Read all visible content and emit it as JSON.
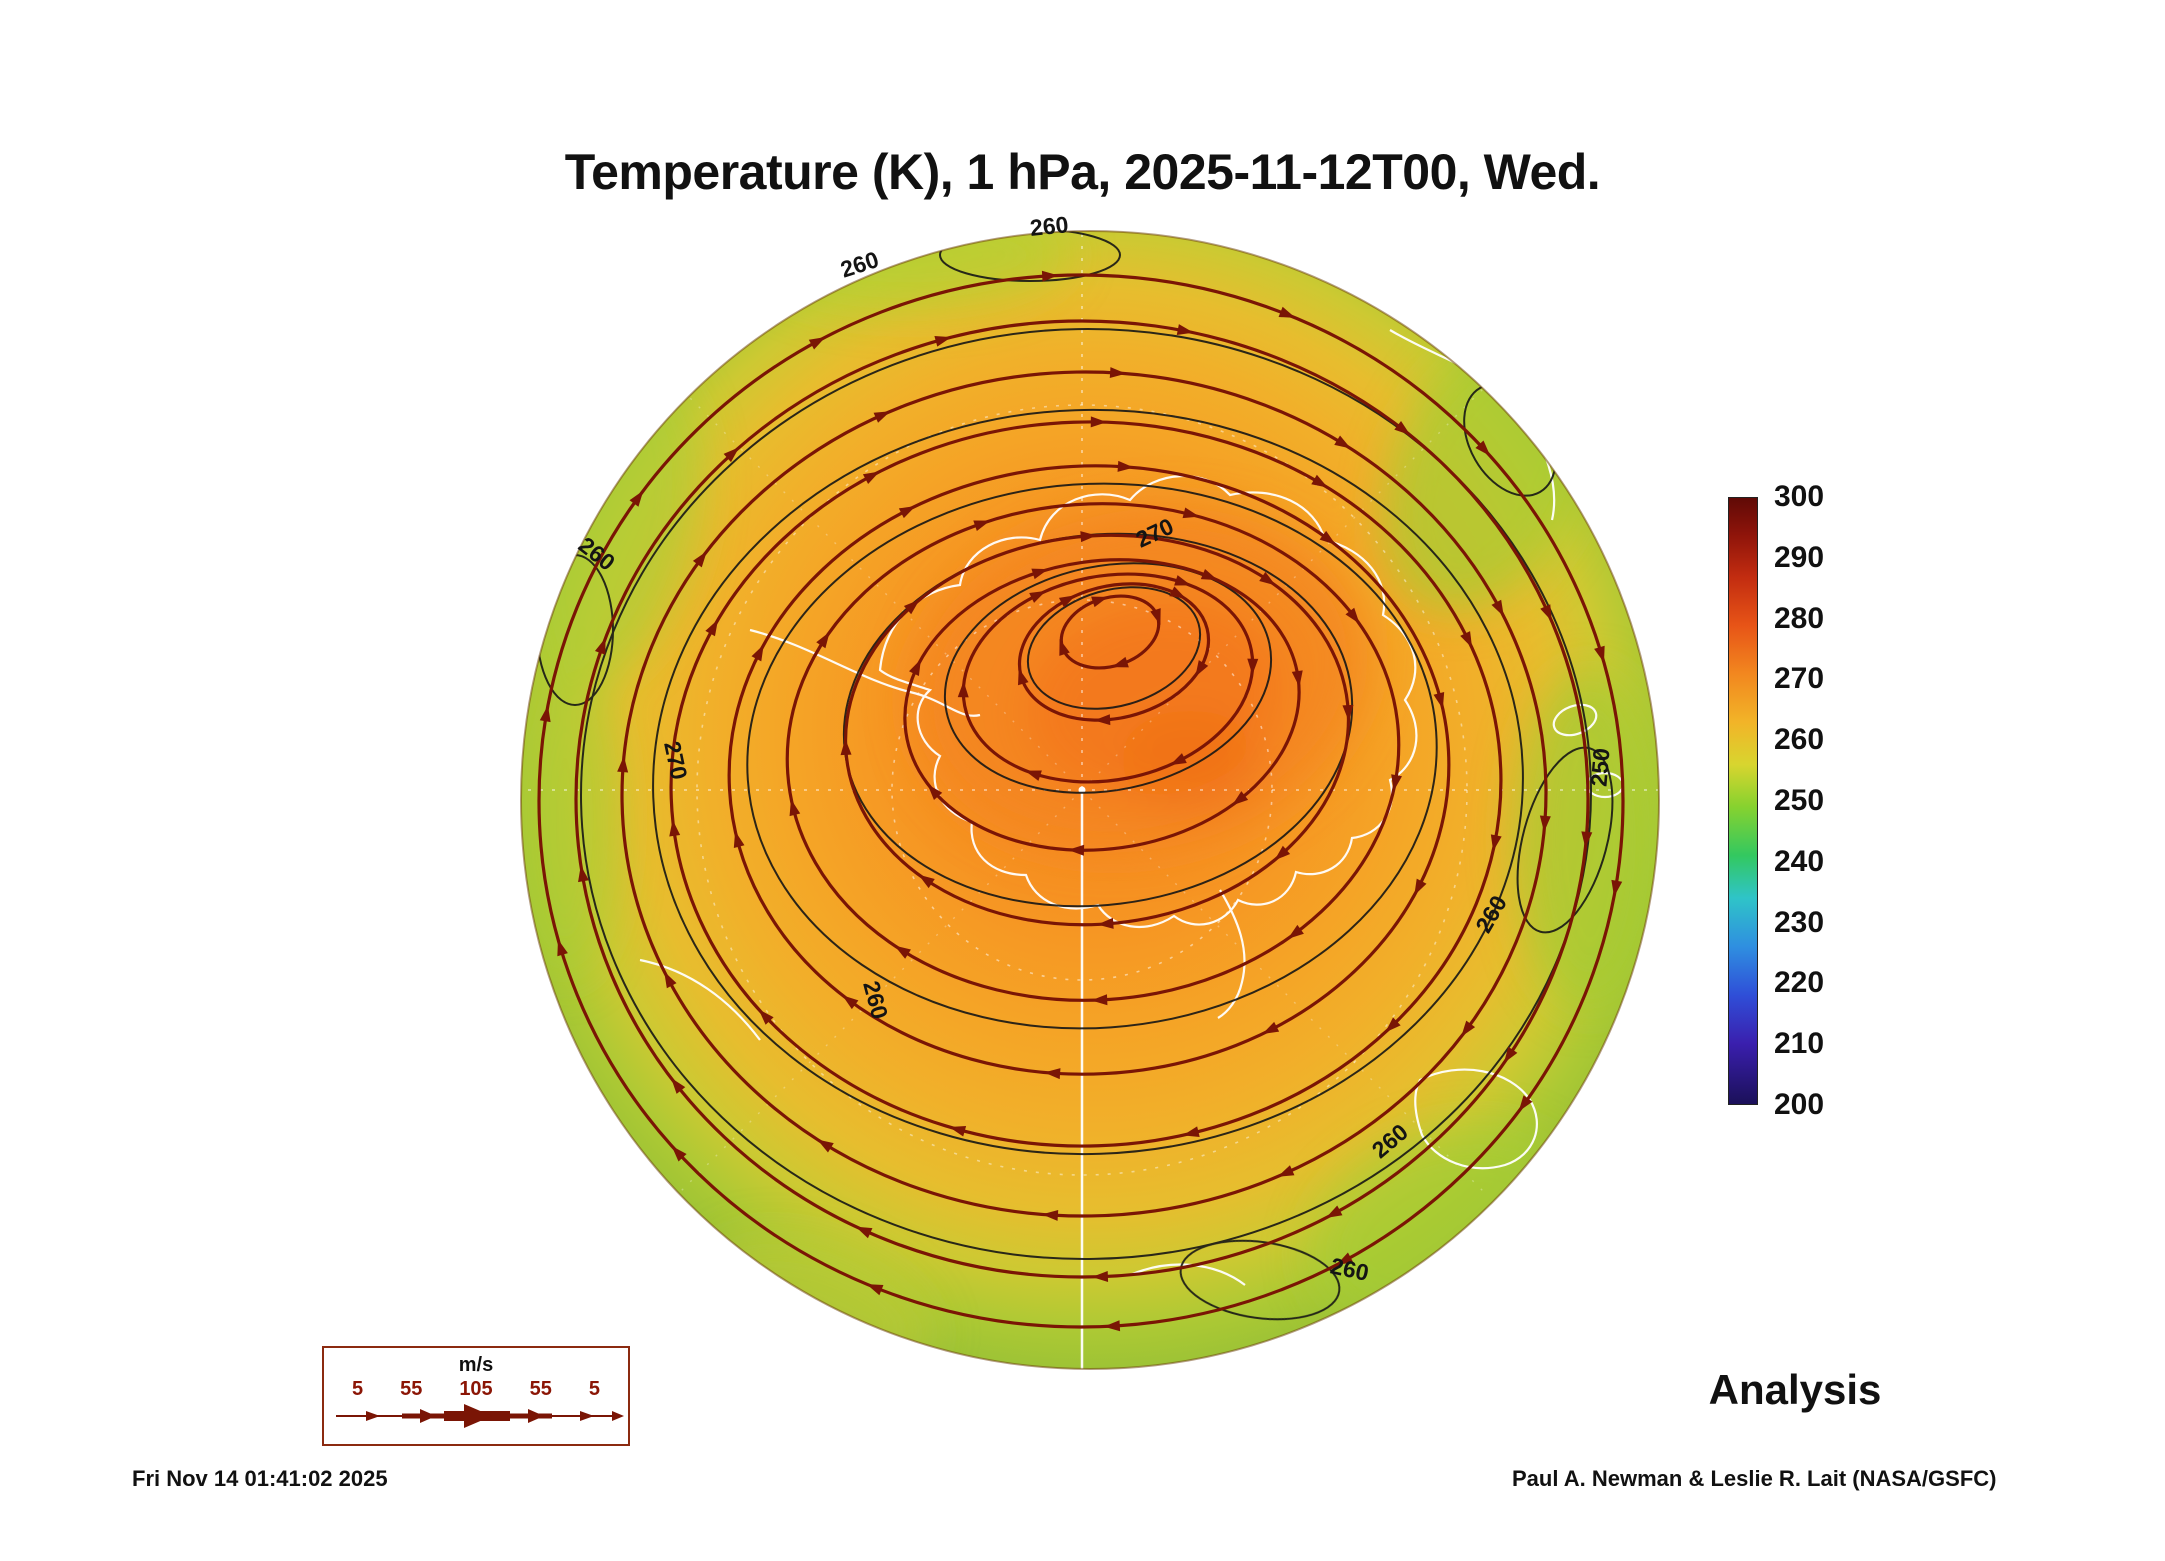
{
  "title": "Temperature (K), 1 hPa, 2025-11-12T00, Wed.",
  "chart_data": {
    "type": "heatmap",
    "description": "South polar orthographic map of temperature shading with wind streamlines, temperature contours and white coastlines",
    "variable": "Temperature (K)",
    "level": "1 hPa",
    "valid_time": "2025-11-12T00",
    "weekday": "Wed.",
    "colorbar": {
      "min": 200,
      "max": 300,
      "ticks": [
        "300",
        "290",
        "280",
        "270",
        "260",
        "250",
        "240",
        "230",
        "220",
        "210",
        "200"
      ],
      "stops": [
        {
          "value": 200,
          "color": "#1b1059"
        },
        {
          "value": 210,
          "color": "#3a1fae"
        },
        {
          "value": 218,
          "color": "#2f4fd8"
        },
        {
          "value": 226,
          "color": "#2f8fe0"
        },
        {
          "value": 234,
          "color": "#2fc4c8"
        },
        {
          "value": 241,
          "color": "#33c860"
        },
        {
          "value": 249,
          "color": "#86d22f"
        },
        {
          "value": 256,
          "color": "#d8d52f"
        },
        {
          "value": 263,
          "color": "#f2b428"
        },
        {
          "value": 271,
          "color": "#f2871f"
        },
        {
          "value": 279,
          "color": "#e75417"
        },
        {
          "value": 287,
          "color": "#c22c10"
        },
        {
          "value": 294,
          "color": "#8e140a"
        },
        {
          "value": 300,
          "color": "#600a06"
        }
      ]
    },
    "contour_labels": [
      "260",
      "260",
      "260",
      "270",
      "270",
      "250",
      "260",
      "260",
      "260",
      "260"
    ],
    "streamline_color": "#7a1505",
    "contour_color": "#161616",
    "coastline_color": "#ffffff"
  },
  "wind_legend": {
    "unit": "m/s",
    "values": [
      "5",
      "55",
      "105",
      "55",
      "5"
    ]
  },
  "analysis_label": "Analysis",
  "footer": {
    "timestamp": "Fri Nov 14 01:41:02 2025",
    "credit": "Paul A. Newman & Leslie R. Lait (NASA/GSFC)"
  }
}
